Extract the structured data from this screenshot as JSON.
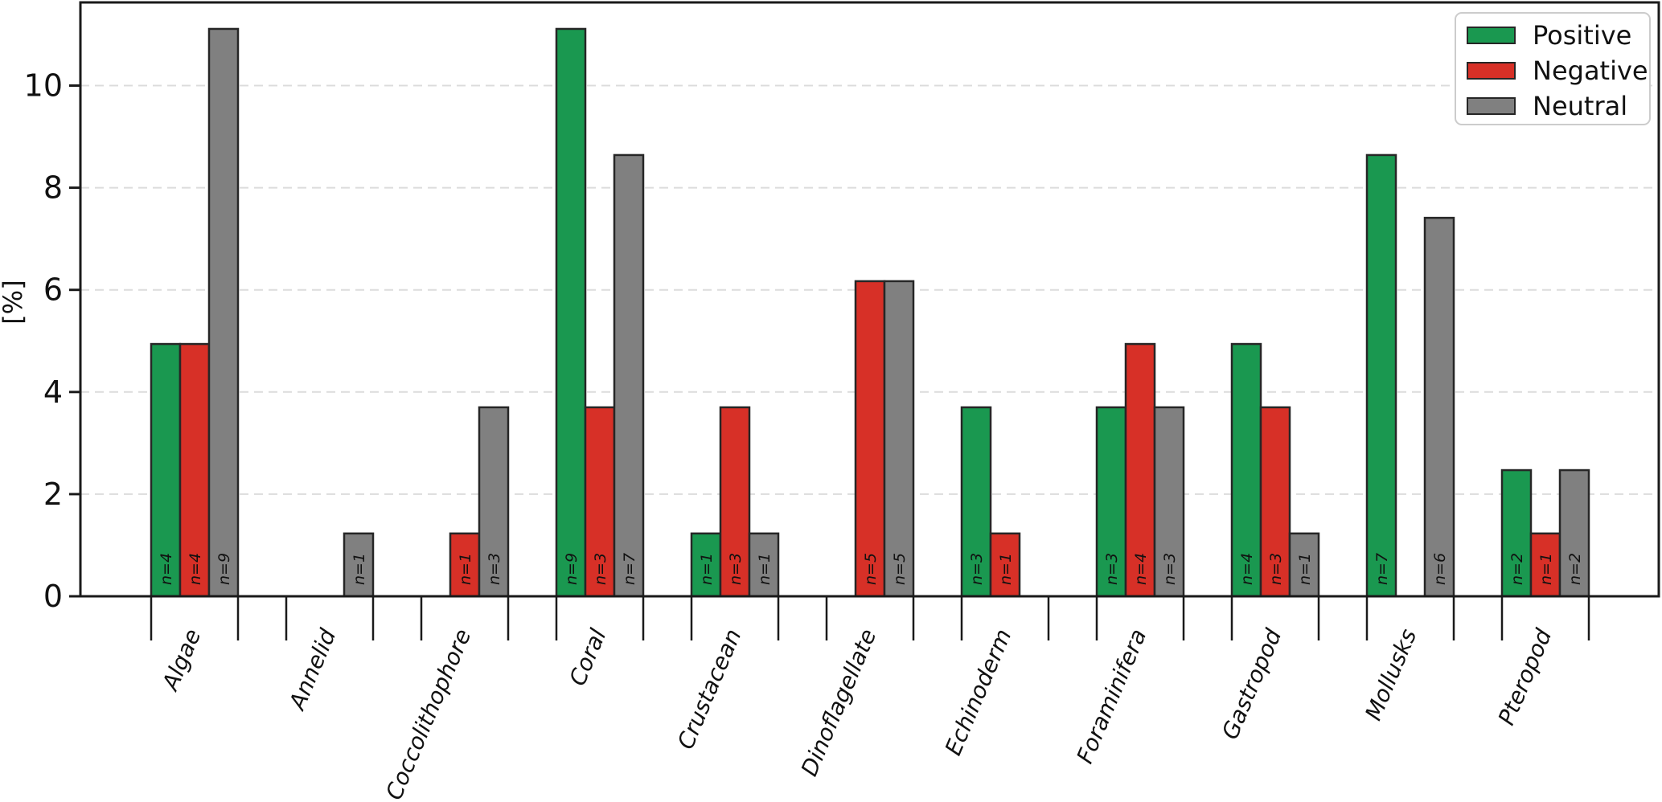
{
  "chart_data": {
    "type": "bar",
    "title": "",
    "xlabel": "",
    "ylabel": "[%]",
    "ylim": [
      0,
      11.62
    ],
    "yticks": [
      0,
      2,
      4,
      6,
      8,
      10
    ],
    "grid": "horizontal dashed",
    "legend_position": "upper right",
    "bar_label_format": "n={n}",
    "categories": [
      "Algae",
      "Annelid",
      "Coccolithophore",
      "Coral",
      "Crustacean",
      "Dinoflagellate",
      "Echinoderm",
      "Foraminifera",
      "Gastropod",
      "Mollusks",
      "Pteropod"
    ],
    "series": [
      {
        "name": "Positive",
        "color": "#1a9850",
        "values": [
          4.94,
          0,
          0,
          11.11,
          1.23,
          0,
          3.7,
          3.7,
          4.94,
          8.64,
          2.47
        ],
        "n": [
          4,
          0,
          0,
          9,
          1,
          0,
          3,
          3,
          4,
          7,
          2
        ]
      },
      {
        "name": "Negative",
        "color": "#d73027",
        "values": [
          4.94,
          0,
          1.23,
          3.7,
          3.7,
          6.17,
          1.23,
          4.94,
          3.7,
          0,
          1.23
        ],
        "n": [
          4,
          0,
          1,
          3,
          3,
          5,
          1,
          4,
          3,
          0,
          1
        ]
      },
      {
        "name": "Neutral",
        "color": "#808080",
        "values": [
          11.11,
          1.23,
          3.7,
          8.64,
          1.23,
          6.17,
          0,
          3.7,
          1.23,
          7.41,
          2.47
        ],
        "n": [
          9,
          1,
          3,
          7,
          1,
          5,
          0,
          3,
          1,
          6,
          2
        ]
      }
    ],
    "style": {
      "axis_color": "#1a1a1a",
      "bar_edge_color": "#262626",
      "grid_color": "#dcdcdc",
      "background": "#ffffff"
    }
  }
}
